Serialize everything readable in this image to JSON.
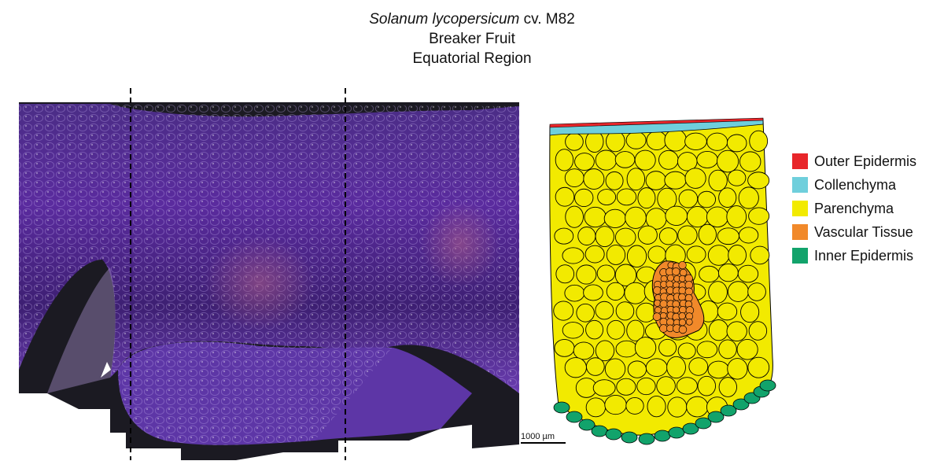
{
  "title": {
    "species": "Solanum lycopersicum",
    "cultivar": " cv. M82",
    "line2": "Breaker Fruit",
    "line3": "Equatorial Region"
  },
  "legend": {
    "items": [
      {
        "label": "Outer Epidermis",
        "color": "#e8262a"
      },
      {
        "label": "Collenchyma",
        "color": "#6fcfdc"
      },
      {
        "label": "Parenchyma",
        "color": "#f2ea00"
      },
      {
        "label": "Vascular Tissue",
        "color": "#f1892a"
      },
      {
        "label": "Inner Epidermis",
        "color": "#12a36b"
      }
    ]
  },
  "scale_bar": {
    "label": "1000 µm"
  }
}
